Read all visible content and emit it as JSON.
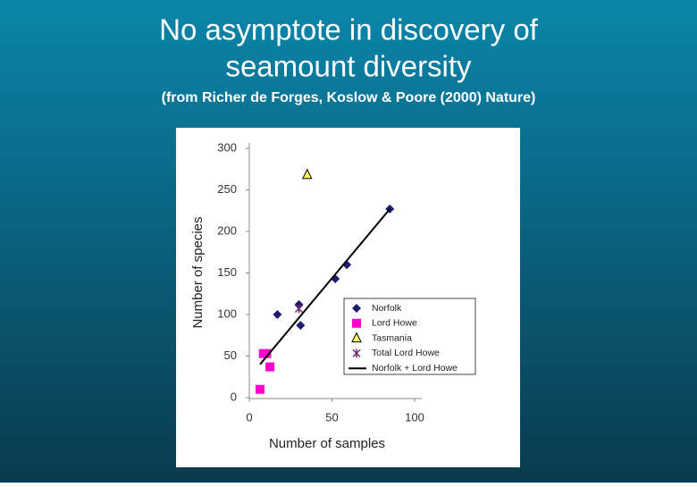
{
  "title_lines": [
    "No asymptote in discovery of",
    "seamount diversity"
  ],
  "subtitle": "(from Richer de Forges, Koslow & Poore (2000) Nature)",
  "chart_data": {
    "type": "scatter",
    "x_label": "Number of samples",
    "y_label": "Number of species",
    "xlim": [
      0,
      100
    ],
    "ylim": [
      0,
      300
    ],
    "xticks": [
      0,
      50,
      100
    ],
    "yticks": [
      0,
      50,
      100,
      150,
      200,
      250,
      300
    ],
    "series": [
      {
        "name": "Norfolk",
        "color": "#1c1c70",
        "marker": "diamond",
        "x": [
          17,
          30,
          31,
          52,
          59,
          85
        ],
        "values": [
          100,
          112,
          87,
          143,
          160,
          227
        ]
      },
      {
        "name": "Lord Howe",
        "color": "#ff00cc",
        "marker": "square",
        "x": [
          6.5,
          8.5,
          10.5,
          12.5
        ],
        "values": [
          10,
          53,
          53,
          37
        ]
      },
      {
        "name": "Tasmania",
        "color": "#ffff66",
        "marker": "triangle",
        "x": [
          35
        ],
        "values": [
          268
        ]
      },
      {
        "name": "Total Lord Howe",
        "color": "#6b2a6b",
        "marker": "star",
        "x": [
          30
        ],
        "values": [
          107
        ]
      },
      {
        "name": "Norfolk + Lord Howe",
        "color": "#000000",
        "marker": "line",
        "x": [
          6.5,
          85
        ],
        "values": [
          40,
          227
        ]
      }
    ]
  }
}
